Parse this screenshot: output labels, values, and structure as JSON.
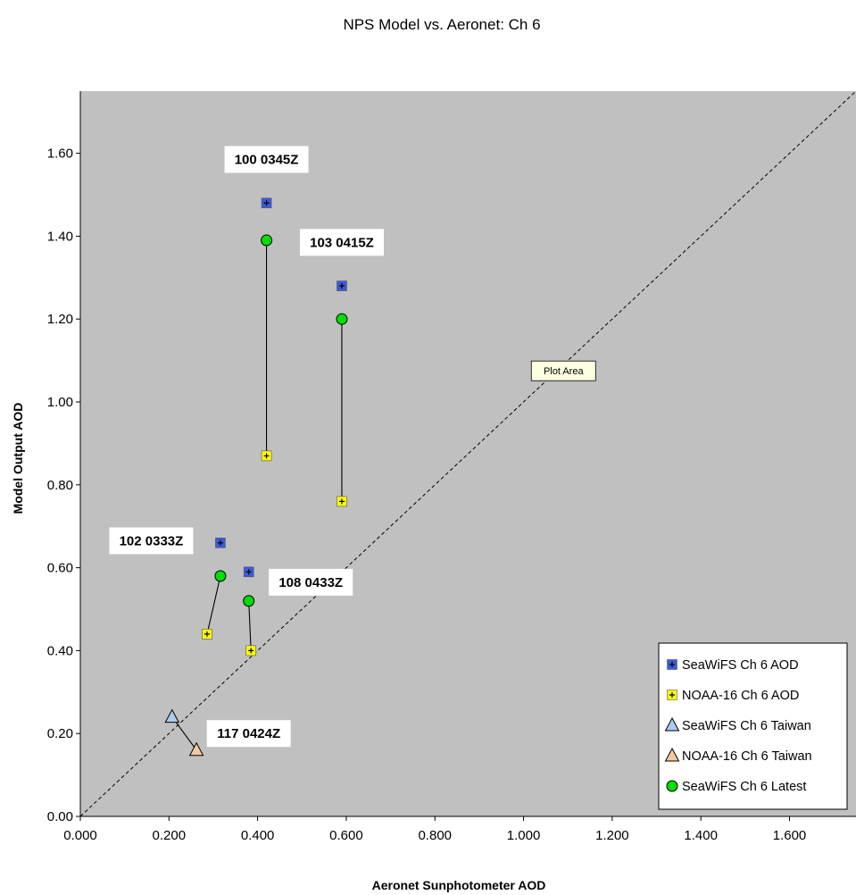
{
  "chart_data": {
    "type": "scatter",
    "title": "NPS Model vs. Aeronet: Ch 6",
    "xlabel": "Aeronet Sunphotometer AOD",
    "ylabel": "Model Output AOD",
    "xlim": [
      0,
      1.75
    ],
    "ylim": [
      0,
      1.75
    ],
    "xticks": [
      "0.000",
      "0.200",
      "0.400",
      "0.600",
      "0.800",
      "1.000",
      "1.200",
      "1.400",
      "1.600"
    ],
    "yticks": [
      "0.00",
      "0.20",
      "0.40",
      "0.60",
      "0.80",
      "1.00",
      "1.20",
      "1.40",
      "1.60"
    ],
    "grid": false,
    "plot_background": "#c0c0c0",
    "legend_position": "bottom-right",
    "series": [
      {
        "name": "SeaWiFS Ch 6 AOD",
        "marker": "square-plus",
        "color": "#3b5bdb",
        "points": [
          [
            0.42,
            1.48
          ],
          [
            0.59,
            1.28
          ],
          [
            0.316,
            0.66
          ],
          [
            0.38,
            0.59
          ]
        ]
      },
      {
        "name": "NOAA-16 Ch 6 AOD",
        "marker": "square-plus",
        "color": "#ffff00",
        "points": [
          [
            0.42,
            0.87
          ],
          [
            0.59,
            0.76
          ],
          [
            0.286,
            0.44
          ],
          [
            0.385,
            0.4
          ]
        ]
      },
      {
        "name": "SeaWiFS Ch 6 Taiwan",
        "marker": "triangle",
        "color": "#aaccee",
        "points": [
          [
            0.207,
            0.24
          ]
        ]
      },
      {
        "name": "NOAA-16 Ch 6 Taiwan",
        "marker": "triangle",
        "color": "#f5c8a0",
        "points": [
          [
            0.262,
            0.16
          ]
        ]
      },
      {
        "name": "SeaWiFS Ch 6 Latest",
        "marker": "circle",
        "color": "#00dd00",
        "points": [
          [
            0.42,
            1.39
          ],
          [
            0.59,
            1.2
          ],
          [
            0.316,
            0.58
          ],
          [
            0.38,
            0.52
          ]
        ]
      }
    ],
    "connectors": [
      [
        [
          0.42,
          1.39
        ],
        [
          0.42,
          0.87
        ]
      ],
      [
        [
          0.59,
          1.2
        ],
        [
          0.59,
          0.76
        ]
      ],
      [
        [
          0.316,
          0.58
        ],
        [
          0.286,
          0.44
        ]
      ],
      [
        [
          0.38,
          0.52
        ],
        [
          0.385,
          0.4
        ]
      ],
      [
        [
          0.207,
          0.24
        ],
        [
          0.262,
          0.16
        ]
      ]
    ],
    "reference_line": {
      "style": "dashed",
      "from": [
        0,
        0
      ],
      "to": [
        1.75,
        1.75
      ]
    },
    "annotations": [
      {
        "text": "100 0345Z",
        "x": 0.42,
        "y": 1.585
      },
      {
        "text": "103 0415Z",
        "x": 0.59,
        "y": 1.385
      },
      {
        "text": "102 0333Z",
        "x": 0.16,
        "y": 0.665
      },
      {
        "text": "108 0433Z",
        "x": 0.52,
        "y": 0.565
      },
      {
        "text": "117 0424Z",
        "x": 0.38,
        "y": 0.2
      }
    ],
    "tooltip": {
      "text": "Plot Area",
      "x": 1.09,
      "y": 1.075
    }
  }
}
